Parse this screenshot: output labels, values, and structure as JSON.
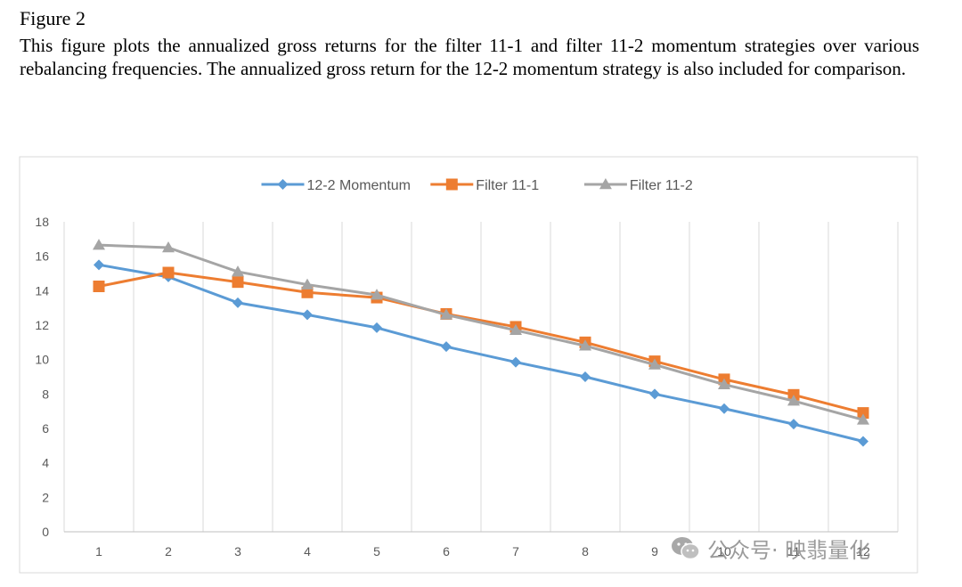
{
  "figure": {
    "title": "Figure 2",
    "caption": "This figure plots the annualized gross returns for the filter 11-1 and filter 11-2 momentum strategies over various rebalancing frequencies. The annualized gross return for the 12-2 momentum strategy is also included for comparison."
  },
  "watermark": {
    "text": "公众号· 映翡量化"
  },
  "chart_data": {
    "type": "line",
    "title": "",
    "xlabel": "",
    "ylabel": "",
    "categories": [
      "1",
      "2",
      "3",
      "4",
      "5",
      "6",
      "7",
      "8",
      "9",
      "10",
      "11",
      "12"
    ],
    "ylim": [
      0,
      18
    ],
    "yticks": [
      0,
      2,
      4,
      6,
      8,
      10,
      12,
      14,
      16,
      18
    ],
    "grid": "vertical",
    "legend": "top-center",
    "series": [
      {
        "name": "12-2 Momentum",
        "color": "#5b9bd5",
        "marker": "diamond",
        "values": [
          15.5,
          14.8,
          13.3,
          12.6,
          11.85,
          10.75,
          9.85,
          9.0,
          8.0,
          7.15,
          6.25,
          5.25
        ]
      },
      {
        "name": "Filter 11-1",
        "color": "#ed7d31",
        "marker": "square",
        "values": [
          14.25,
          15.05,
          14.5,
          13.9,
          13.6,
          12.65,
          11.9,
          11.0,
          9.9,
          8.85,
          7.95,
          6.9
        ]
      },
      {
        "name": "Filter 11-2",
        "color": "#a5a5a5",
        "marker": "triangle",
        "values": [
          16.65,
          16.5,
          15.1,
          14.35,
          13.75,
          12.6,
          11.7,
          10.8,
          9.7,
          8.55,
          7.6,
          6.5
        ]
      }
    ]
  }
}
